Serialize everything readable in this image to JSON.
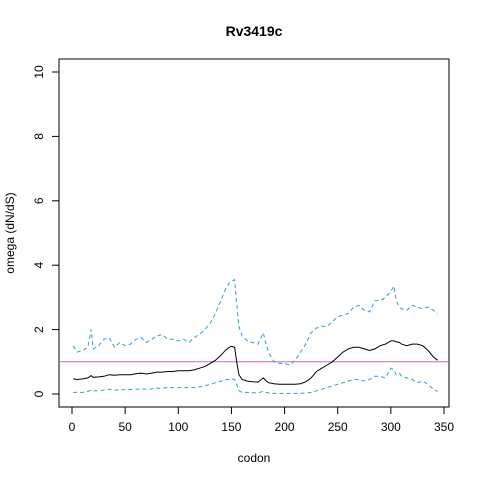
{
  "chart_data": {
    "type": "line",
    "title": "Rv3419c",
    "xlabel": "codon",
    "ylabel": "omega (dN/dS)",
    "xlim": [
      0,
      345
    ],
    "ylim": [
      0,
      10.5
    ],
    "x_ticks": [
      0,
      50,
      100,
      150,
      200,
      250,
      300,
      350
    ],
    "y_ticks": [
      0,
      2,
      4,
      6,
      8,
      10
    ],
    "reference_line": {
      "y": 1,
      "color": "#cc66cc"
    },
    "colors": {
      "estimate": "#000000",
      "bounds": "#3399dd"
    },
    "series": [
      {
        "role": "upper",
        "style": "dashed",
        "x": [
          1,
          5,
          10,
          15,
          18,
          20,
          25,
          30,
          35,
          40,
          45,
          50,
          55,
          60,
          65,
          70,
          75,
          80,
          85,
          90,
          95,
          100,
          105,
          110,
          115,
          120,
          125,
          130,
          135,
          140,
          145,
          148,
          150,
          153,
          155,
          157,
          160,
          165,
          170,
          175,
          180,
          183,
          185,
          190,
          195,
          200,
          205,
          210,
          215,
          220,
          225,
          230,
          235,
          240,
          245,
          250,
          255,
          260,
          265,
          270,
          275,
          280,
          285,
          290,
          295,
          300,
          303,
          305,
          308,
          310,
          315,
          320,
          325,
          330,
          335,
          340,
          344
        ],
        "y": [
          1.5,
          1.3,
          1.35,
          1.45,
          2.0,
          1.4,
          1.5,
          1.7,
          1.75,
          1.45,
          1.6,
          1.5,
          1.55,
          1.7,
          1.75,
          1.6,
          1.7,
          1.8,
          1.85,
          1.7,
          1.7,
          1.65,
          1.7,
          1.6,
          1.75,
          1.85,
          2.0,
          2.2,
          2.5,
          2.9,
          3.3,
          3.45,
          3.5,
          3.55,
          2.8,
          2.1,
          1.8,
          1.65,
          1.6,
          1.55,
          1.9,
          1.5,
          1.3,
          1.0,
          0.95,
          0.95,
          0.9,
          1.05,
          1.3,
          1.55,
          1.9,
          2.05,
          2.1,
          2.1,
          2.25,
          2.4,
          2.45,
          2.5,
          2.7,
          2.75,
          2.6,
          2.55,
          2.9,
          2.9,
          3.0,
          3.2,
          3.35,
          2.9,
          2.7,
          2.65,
          2.6,
          2.75,
          2.7,
          2.65,
          2.7,
          2.6,
          2.5
        ]
      },
      {
        "role": "estimate",
        "style": "solid",
        "x": [
          1,
          5,
          10,
          15,
          18,
          20,
          25,
          30,
          35,
          40,
          45,
          50,
          55,
          60,
          65,
          70,
          75,
          80,
          85,
          90,
          95,
          100,
          105,
          110,
          115,
          120,
          125,
          130,
          135,
          140,
          145,
          148,
          150,
          153,
          155,
          157,
          160,
          165,
          170,
          175,
          180,
          183,
          185,
          190,
          195,
          200,
          205,
          210,
          215,
          220,
          225,
          230,
          235,
          240,
          245,
          250,
          255,
          260,
          265,
          270,
          275,
          280,
          285,
          290,
          295,
          300,
          303,
          305,
          308,
          310,
          315,
          320,
          325,
          330,
          335,
          340,
          344
        ],
        "y": [
          0.47,
          0.45,
          0.47,
          0.5,
          0.57,
          0.52,
          0.53,
          0.55,
          0.6,
          0.58,
          0.6,
          0.6,
          0.6,
          0.63,
          0.65,
          0.62,
          0.65,
          0.68,
          0.68,
          0.7,
          0.7,
          0.72,
          0.72,
          0.72,
          0.75,
          0.8,
          0.85,
          0.95,
          1.05,
          1.2,
          1.38,
          1.45,
          1.48,
          1.45,
          1.0,
          0.6,
          0.45,
          0.4,
          0.38,
          0.37,
          0.5,
          0.4,
          0.35,
          0.32,
          0.3,
          0.3,
          0.3,
          0.3,
          0.32,
          0.38,
          0.5,
          0.7,
          0.8,
          0.9,
          1.0,
          1.15,
          1.3,
          1.4,
          1.45,
          1.45,
          1.4,
          1.35,
          1.4,
          1.5,
          1.55,
          1.65,
          1.65,
          1.62,
          1.6,
          1.55,
          1.5,
          1.55,
          1.55,
          1.5,
          1.35,
          1.15,
          1.05
        ]
      },
      {
        "role": "lower",
        "style": "dashed",
        "x": [
          1,
          5,
          10,
          15,
          18,
          20,
          25,
          30,
          35,
          40,
          45,
          50,
          55,
          60,
          65,
          70,
          75,
          80,
          85,
          90,
          95,
          100,
          105,
          110,
          115,
          120,
          125,
          130,
          135,
          140,
          145,
          148,
          150,
          153,
          155,
          157,
          160,
          165,
          170,
          175,
          180,
          183,
          185,
          190,
          195,
          200,
          205,
          210,
          215,
          220,
          225,
          230,
          235,
          240,
          245,
          250,
          255,
          260,
          265,
          270,
          275,
          280,
          285,
          290,
          295,
          300,
          303,
          305,
          308,
          310,
          315,
          320,
          325,
          330,
          335,
          340,
          344
        ],
        "y": [
          0.05,
          0.05,
          0.05,
          0.08,
          0.12,
          0.1,
          0.1,
          0.12,
          0.15,
          0.12,
          0.13,
          0.13,
          0.14,
          0.15,
          0.16,
          0.15,
          0.16,
          0.18,
          0.18,
          0.2,
          0.2,
          0.2,
          0.2,
          0.2,
          0.2,
          0.22,
          0.25,
          0.3,
          0.35,
          0.4,
          0.45,
          0.45,
          0.47,
          0.45,
          0.3,
          0.1,
          0.05,
          0.05,
          0.04,
          0.04,
          0.08,
          0.05,
          0.03,
          0.02,
          0.02,
          0.02,
          0.02,
          0.02,
          0.02,
          0.03,
          0.05,
          0.1,
          0.15,
          0.2,
          0.25,
          0.3,
          0.35,
          0.4,
          0.45,
          0.45,
          0.4,
          0.45,
          0.55,
          0.55,
          0.5,
          0.8,
          0.75,
          0.6,
          0.65,
          0.55,
          0.5,
          0.45,
          0.35,
          0.4,
          0.3,
          0.15,
          0.08
        ]
      }
    ]
  }
}
